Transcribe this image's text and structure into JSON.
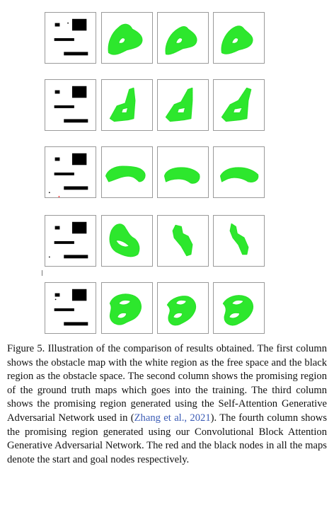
{
  "figure": {
    "rows": 5,
    "columns": [
      "obstacle-map",
      "ground-truth",
      "sagan",
      "cbagan"
    ],
    "free_space_color": "#ffffff",
    "obstacle_color": "#000000",
    "region_color": "#22e622",
    "start_node_color": "#ff0000",
    "goal_node_color": "#000000"
  },
  "caption": {
    "label": "Figure 5.",
    "text_before_cite": " Illustration of the comparison of results obtained. The first column shows the obstacle map with the white region as the free space and the black region as the obstacle space. The second column shows the promising region of the ground truth maps which goes into the training. The third column shows the promising region generated using the Self-Attention Generative Adversarial Network used in (",
    "cite_author": "Zhang et al.",
    "cite_sep": ", ",
    "cite_year": "2021",
    "text_after_cite": "). The fourth column shows the promising region generated using our Convolutional Block Attention Generative Adversarial Network. The red and the black nodes in all the maps denote the start and goal nodes respectively."
  }
}
